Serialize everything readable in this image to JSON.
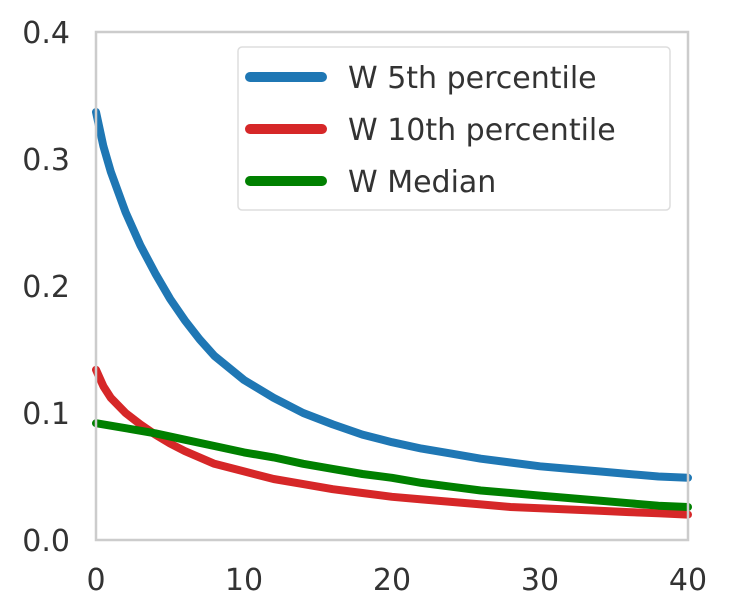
{
  "chart_data": {
    "type": "line",
    "title": "",
    "xlabel": "",
    "ylabel": "",
    "xlim": [
      0,
      40
    ],
    "ylim": [
      0.0,
      0.4
    ],
    "grid": false,
    "legend_position": "top-right",
    "x_ticks": [
      "0",
      "10",
      "20",
      "30",
      "40"
    ],
    "y_ticks": [
      "0.0",
      "0.1",
      "0.2",
      "0.3",
      "0.4"
    ],
    "series": [
      {
        "name": "W 5th percentile",
        "color": "#1f77b4",
        "x": [
          0,
          0.5,
          1,
          2,
          3,
          4,
          5,
          6,
          7,
          8,
          10,
          12,
          14,
          16,
          18,
          20,
          22,
          24,
          26,
          28,
          30,
          32,
          34,
          36,
          38,
          40
        ],
        "y": [
          0.337,
          0.31,
          0.29,
          0.258,
          0.232,
          0.21,
          0.19,
          0.173,
          0.158,
          0.145,
          0.126,
          0.112,
          0.1,
          0.091,
          0.083,
          0.077,
          0.072,
          0.068,
          0.064,
          0.061,
          0.058,
          0.056,
          0.054,
          0.052,
          0.05,
          0.049
        ]
      },
      {
        "name": "W 10th percentile",
        "color": "#d62728",
        "x": [
          0,
          0.5,
          1,
          2,
          3,
          4,
          5,
          6,
          7,
          8,
          10,
          12,
          14,
          16,
          18,
          20,
          22,
          24,
          26,
          28,
          30,
          32,
          34,
          36,
          38,
          40
        ],
        "y": [
          0.134,
          0.121,
          0.112,
          0.1,
          0.091,
          0.083,
          0.076,
          0.07,
          0.065,
          0.06,
          0.054,
          0.048,
          0.044,
          0.04,
          0.037,
          0.034,
          0.032,
          0.03,
          0.028,
          0.026,
          0.025,
          0.024,
          0.023,
          0.022,
          0.021,
          0.02
        ]
      },
      {
        "name": "W Median",
        "color": "#008000",
        "x": [
          0,
          2,
          4,
          6,
          8,
          10,
          12,
          14,
          16,
          18,
          20,
          22,
          24,
          26,
          28,
          30,
          32,
          34,
          36,
          38,
          40
        ],
        "y": [
          0.092,
          0.088,
          0.084,
          0.079,
          0.074,
          0.069,
          0.065,
          0.06,
          0.056,
          0.052,
          0.049,
          0.045,
          0.042,
          0.039,
          0.037,
          0.035,
          0.033,
          0.031,
          0.029,
          0.027,
          0.026
        ]
      }
    ]
  }
}
